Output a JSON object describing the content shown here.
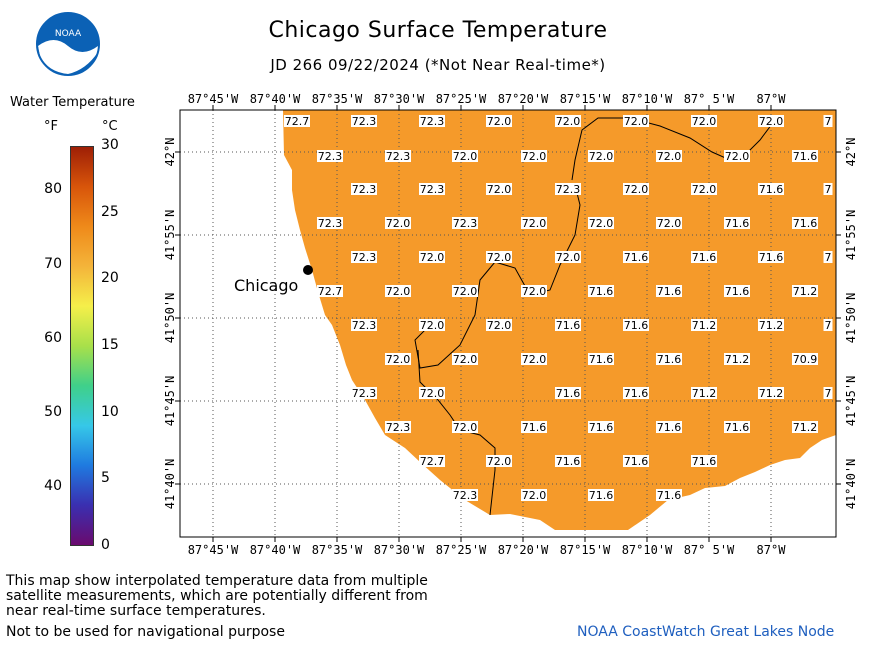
{
  "header": {
    "title": "Chicago Surface Temperature",
    "subtitle": "JD 266 09/22/2024 (*Not Near Real-time*)",
    "logo_text": "NOAA"
  },
  "legend": {
    "title": "Water Temperature",
    "unit_f": "°F",
    "unit_c": "°C",
    "f_ticks": [
      "80",
      "70",
      "60",
      "50",
      "40"
    ],
    "c_ticks": [
      "30",
      "25",
      "20",
      "15",
      "10",
      "5",
      "0"
    ],
    "f_values": [
      80,
      70,
      60,
      50,
      40
    ],
    "c_values": [
      30,
      25,
      20,
      15,
      10,
      5,
      0
    ],
    "colors": [
      "#6a0a6e",
      "#3a2fb0",
      "#1f7ae0",
      "#36c8e8",
      "#3fd08a",
      "#a8e04a",
      "#f5ef4a",
      "#f4b43a",
      "#ef8a1a",
      "#d8550a",
      "#9e1f06"
    ]
  },
  "map": {
    "lon_labels": [
      "87°45'W",
      "87°40'W",
      "87°35'W",
      "87°30'W",
      "87°25'W",
      "87°20'W",
      "87°15'W",
      "87°10'W",
      "87° 5'W",
      "87°W"
    ],
    "lat_labels": [
      "42°N",
      "41°55'N",
      "41°50'N",
      "41°45'N",
      "41°40'N"
    ],
    "city_label": "Chicago",
    "water_color": "#f59a2a",
    "temperature_grid": [
      {
        "lat": "42.03",
        "values": [
          "72.7",
          "72.3",
          "72.3",
          "72.0",
          "72.0",
          "72.0",
          "72.0",
          "72.0",
          "7"
        ]
      },
      {
        "lat": "42.01",
        "values": [
          "72.3",
          "72.3",
          "72.0",
          "72.0",
          "72.0",
          "72.0",
          "72.0",
          "71.6"
        ]
      },
      {
        "lat": "41.98",
        "values": [
          "72.3",
          "72.3",
          "72.0",
          "72.3",
          "72.0",
          "72.0",
          "71.6",
          "7"
        ]
      },
      {
        "lat": "41.96",
        "values": [
          "72.3",
          "72.0",
          "72.3",
          "72.0",
          "72.0",
          "72.0",
          "71.6",
          "71.6"
        ]
      },
      {
        "lat": "41.93",
        "values": [
          "72.3",
          "72.0",
          "72.0",
          "72.0",
          "71.6",
          "71.6",
          "71.6",
          "7"
        ]
      },
      {
        "lat": "41.91",
        "values": [
          "72.7",
          "72.0",
          "72.0",
          "72.0",
          "71.6",
          "71.6",
          "71.6",
          "71.2"
        ]
      },
      {
        "lat": "41.88",
        "values": [
          "72.3",
          "72.0",
          "72.0",
          "71.6",
          "71.6",
          "71.2",
          "71.2",
          "7"
        ]
      },
      {
        "lat": "41.86",
        "values": [
          "72.0",
          "72.0",
          "72.0",
          "71.6",
          "71.6",
          "71.2",
          "70.9"
        ]
      },
      {
        "lat": "41.83",
        "values": [
          "72.3",
          "72.0",
          "71.6",
          "71.6",
          "71.2",
          "71.2",
          "7"
        ]
      },
      {
        "lat": "41.81",
        "values": [
          "72.3",
          "72.0",
          "71.6",
          "71.6",
          "71.6",
          "71.6",
          "71.2"
        ]
      },
      {
        "lat": "41.78",
        "values": [
          "72.7",
          "72.0",
          "71.6",
          "71.6",
          "71.6"
        ]
      },
      {
        "lat": "41.76",
        "values": [
          "72.3",
          "72.0",
          "71.6",
          "71.6"
        ]
      }
    ]
  },
  "footer": {
    "note": "This map show interpolated temperature data from multiple satellite measurements, which are potentially different from near real-time surface temperatures.",
    "nav_note": "Not to be used for navigational purpose",
    "credit": "NOAA CoastWatch Great Lakes Node"
  }
}
